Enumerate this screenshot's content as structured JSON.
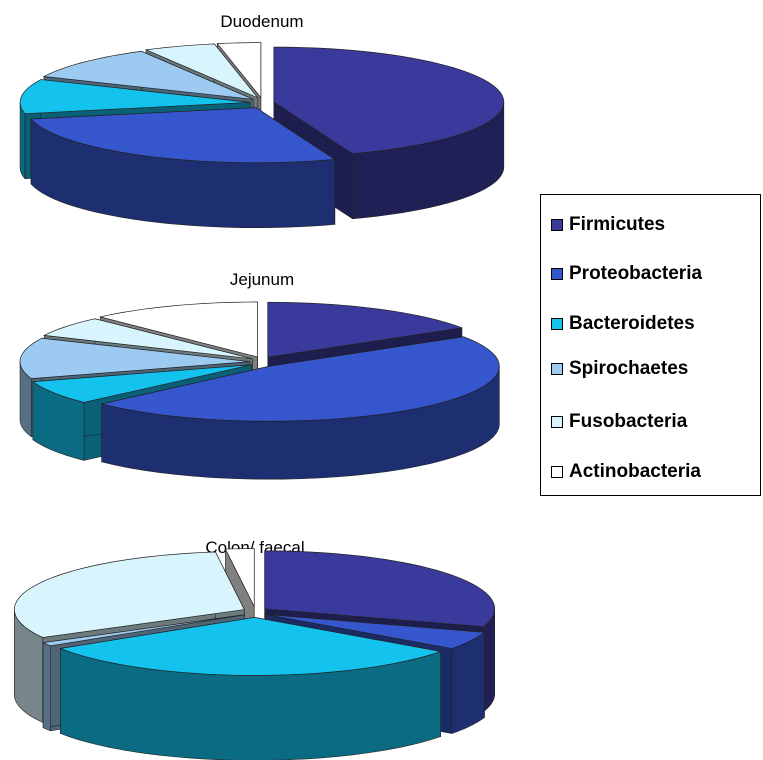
{
  "colors": {
    "Firmicutes": "#3a3a9c",
    "Proteobacteria": "#3556cc",
    "Bacteroidetes": "#14c2ee",
    "Spirochaetes": "#9ccaf0",
    "Fusobacteria": "#d8f4fc",
    "Actinobacteria": "#ffffff"
  },
  "legend": [
    "Firmicutes",
    "Proteobacteria",
    "Bacteroidetes",
    "Spirochaetes",
    "Fusobacteria",
    "Actinobacteria"
  ],
  "chart_data": [
    {
      "type": "pie",
      "title": "Duodenum",
      "categories": [
        "Firmicutes",
        "Proteobacteria",
        "Bacteroidetes",
        "Spirochaetes",
        "Fusobacteria",
        "Actinobacteria"
      ],
      "values": [
        44,
        27,
        10,
        10,
        5,
        3
      ],
      "unit": "%"
    },
    {
      "type": "pie",
      "title": "Jejunum",
      "categories": [
        "Firmicutes",
        "Proteobacteria",
        "Bacteroidetes",
        "Spirochaetes",
        "Fusobacteria",
        "Actinobacteria"
      ],
      "values": [
        16,
        47,
        7,
        12,
        6,
        12
      ],
      "unit": "%"
    },
    {
      "type": "pie",
      "title": "Colon/ faecal",
      "categories": [
        "Firmicutes",
        "Proteobacteria",
        "Bacteroidetes",
        "Spirochaetes",
        "Fusobacteria",
        "Actinobacteria"
      ],
      "values": [
        30,
        5,
        31,
        1,
        31,
        2
      ],
      "unit": "%"
    }
  ]
}
